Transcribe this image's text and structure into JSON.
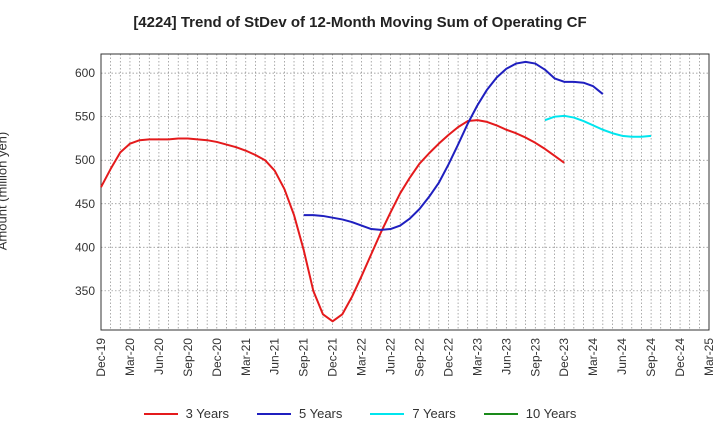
{
  "chart_data": {
    "type": "line",
    "title": "[4224]  Trend of StDev of 12-Month Moving Sum of Operating CF",
    "ylabel": "Amount (million yen)",
    "xlabel": "",
    "ylim": [
      305,
      622
    ],
    "yticks": [
      350,
      400,
      450,
      500,
      550,
      600
    ],
    "xticks": [
      "Dec-19",
      "Mar-20",
      "Jun-20",
      "Sep-20",
      "Dec-20",
      "Mar-21",
      "Jun-21",
      "Sep-21",
      "Dec-21",
      "Mar-22",
      "Jun-22",
      "Sep-22",
      "Dec-22",
      "Mar-23",
      "Jun-23",
      "Sep-23",
      "Dec-23",
      "Mar-24",
      "Jun-24",
      "Sep-24",
      "Dec-24",
      "Mar-25"
    ],
    "grid": true,
    "legend_position": "bottom",
    "series": [
      {
        "name": "3 Years",
        "color": "#e41a1c",
        "start_index": 0,
        "values": [
          469,
          490,
          509,
          519,
          523,
          524,
          524,
          524,
          525,
          525,
          524,
          523,
          521,
          518,
          515,
          511,
          506,
          500,
          488,
          467,
          437,
          397,
          350,
          323,
          315,
          323,
          343,
          367,
          392,
          417,
          440,
          462,
          480,
          496,
          508,
          519,
          529,
          538,
          545,
          546,
          544,
          540,
          535,
          531,
          526,
          520,
          513,
          505,
          497
        ]
      },
      {
        "name": "5 Years",
        "color": "#1f1fbf",
        "start_index": 21,
        "values": [
          437,
          437,
          436,
          434,
          432,
          429,
          425,
          421,
          420,
          421,
          425,
          433,
          444,
          458,
          474,
          495,
          518,
          542,
          563,
          581,
          595,
          605,
          611,
          613,
          611,
          604,
          594,
          590,
          590,
          589,
          585,
          576
        ]
      },
      {
        "name": "7 Years",
        "color": "#00e5ee",
        "start_index": 46,
        "values": [
          546,
          550,
          551,
          549,
          545,
          540,
          535,
          531,
          528,
          527,
          527,
          528
        ]
      },
      {
        "name": "10 Years",
        "color": "#1a8a1a",
        "start_index": 0,
        "values": []
      }
    ]
  }
}
